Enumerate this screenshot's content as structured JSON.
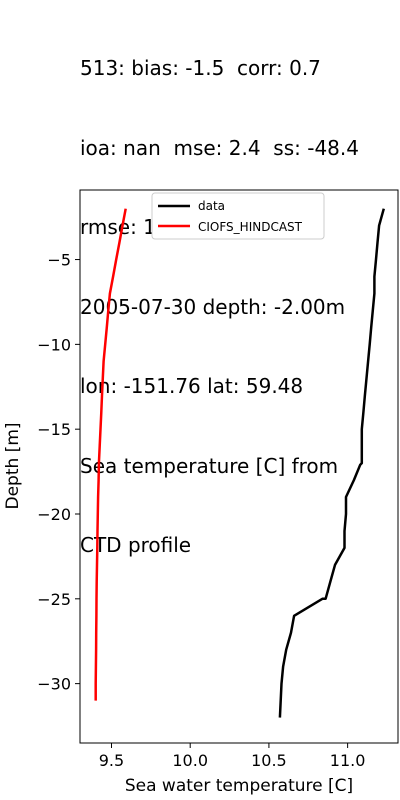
{
  "title_lines": [
    "513: bias: -1.5  corr: 0.7",
    "ioa: nan  mse: 2.4  ss: -48.4",
    "rmse: 1.5  dist: 0.1",
    "2005-07-30 depth: -2.00m",
    "lon: -151.76 lat: 59.48",
    "Sea temperature [C] from",
    "CTD profile"
  ],
  "chart_data": {
    "type": "line",
    "xlabel": "Sea water temperature [C]",
    "ylabel": "Depth [m]",
    "xlim": [
      9.3,
      11.32
    ],
    "ylim": [
      -33.5,
      -0.9
    ],
    "xticks": [
      9.5,
      10.0,
      10.5,
      11.0
    ],
    "xtick_labels": [
      "9.5",
      "10.0",
      "10.5",
      "11.0"
    ],
    "yticks": [
      -5,
      -10,
      -15,
      -20,
      -25,
      -30
    ],
    "ytick_labels": [
      "−5",
      "−10",
      "−15",
      "−20",
      "−25",
      "−30"
    ],
    "grid": false,
    "legend_placement": "top-center",
    "series": [
      {
        "name": "data",
        "color": "#000000",
        "x": [
          11.23,
          11.2,
          11.19,
          11.18,
          11.17,
          11.17,
          11.16,
          11.15,
          11.14,
          11.13,
          11.12,
          11.11,
          11.1,
          11.09,
          11.09,
          11.09,
          11.08,
          11.04,
          10.99,
          10.99,
          10.98,
          10.98,
          10.92,
          10.89,
          10.86,
          10.84,
          10.66,
          10.64,
          10.61,
          10.59,
          10.58,
          10.57
        ],
        "y": [
          -2,
          -3,
          -4,
          -5,
          -6,
          -7,
          -8,
          -9,
          -10,
          -11,
          -12,
          -13,
          -14,
          -15,
          -16,
          -17,
          -17.1,
          -18,
          -19,
          -20,
          -21,
          -22,
          -23,
          -24,
          -25,
          -25,
          -26,
          -27,
          -28,
          -29,
          -30,
          -32
        ]
      },
      {
        "name": "CIOFS_HINDCAST",
        "color": "#ff0000",
        "x": [
          9.59,
          9.57,
          9.55,
          9.53,
          9.51,
          9.49,
          9.48,
          9.47,
          9.46,
          9.45,
          9.445,
          9.44,
          9.435,
          9.43,
          9.425,
          9.42,
          9.418,
          9.415,
          9.413,
          9.411,
          9.41,
          9.408,
          9.406,
          9.405,
          9.404,
          9.403,
          9.402,
          9.401,
          9.4,
          9.4,
          9.4
        ],
        "y": [
          -2,
          -3,
          -4,
          -5,
          -6,
          -7,
          -8,
          -9,
          -10,
          -11,
          -12,
          -13,
          -14,
          -15,
          -16,
          -17,
          -18,
          -19,
          -20,
          -21,
          -22,
          -23,
          -24,
          -25,
          -26,
          -27,
          -28,
          -29,
          -30,
          -30.5,
          -31
        ]
      }
    ]
  }
}
